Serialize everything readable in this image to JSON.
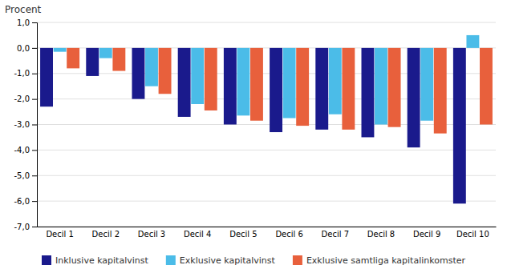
{
  "chart_data": {
    "type": "bar",
    "ylabel": "Procent",
    "categories": [
      "Decil 1",
      "Decil 2",
      "Decil 3",
      "Decil 4",
      "Decil 5",
      "Decil 6",
      "Decil 7",
      "Decil 8",
      "Decil 9",
      "Decil 10"
    ],
    "series": [
      {
        "name": "Inklusive kapitalvinst",
        "color": "#1A1A8C",
        "values": [
          -2.3,
          -1.1,
          -2.0,
          -2.7,
          -3.0,
          -3.3,
          -3.2,
          -3.5,
          -3.9,
          -6.1
        ]
      },
      {
        "name": "Exklusive kapitalvinst",
        "color": "#4BBCE8",
        "values": [
          -0.15,
          -0.4,
          -1.5,
          -2.2,
          -2.65,
          -2.75,
          -2.6,
          -3.0,
          -2.85,
          0.5
        ]
      },
      {
        "name": "Exklusive samtliga kapitalinkomster",
        "color": "#E8603C",
        "values": [
          -0.8,
          -0.9,
          -1.8,
          -2.45,
          -2.85,
          -3.05,
          -3.2,
          -3.1,
          -3.35,
          -3.0
        ]
      }
    ],
    "ylim": [
      -7.0,
      1.0
    ],
    "yticks": [
      {
        "value": 1.0,
        "label": "1,0"
      },
      {
        "value": 0.0,
        "label": "0,0"
      },
      {
        "value": -1.0,
        "label": "-1,0"
      },
      {
        "value": -2.0,
        "label": "-2,0"
      },
      {
        "value": -3.0,
        "label": "-3,0"
      },
      {
        "value": -4.0,
        "label": "-4,0"
      },
      {
        "value": -5.0,
        "label": "-5,0"
      },
      {
        "value": -6.0,
        "label": "-6,0"
      },
      {
        "value": -7.0,
        "label": "-7,0"
      }
    ],
    "grid": true,
    "legend": "bottom"
  }
}
